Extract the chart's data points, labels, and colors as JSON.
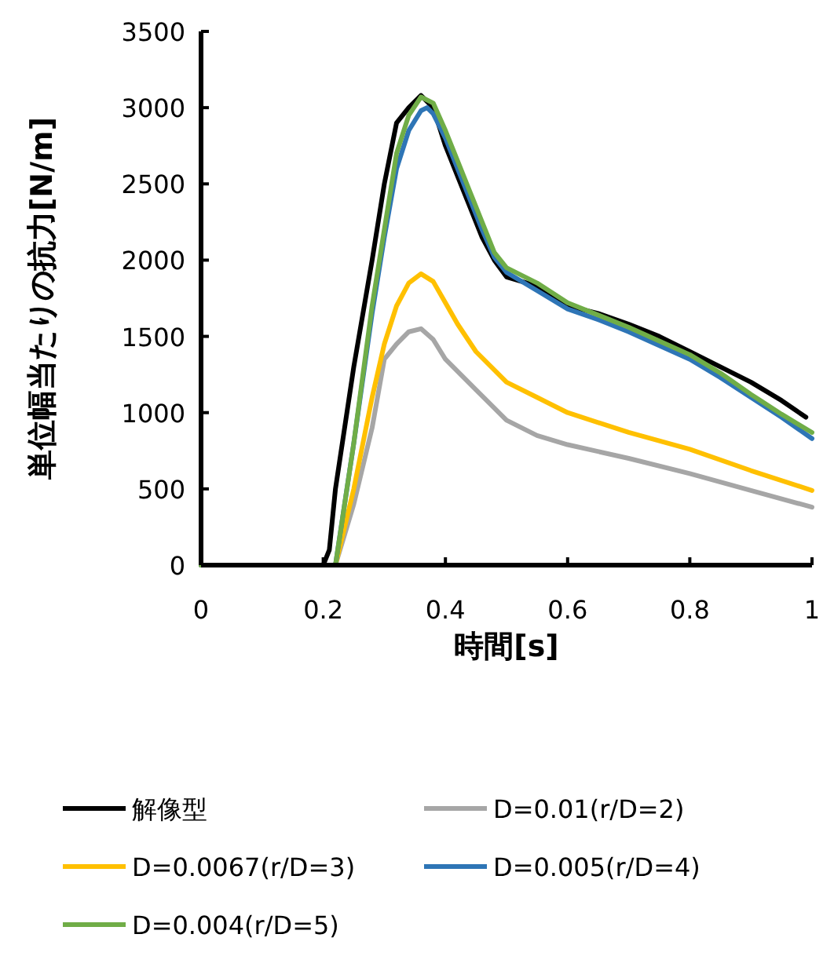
{
  "chart_data": {
    "type": "line",
    "xlabel": "時間[s]",
    "ylabel": "単位幅当たりの抗力[N/m]",
    "xlim": [
      0,
      1
    ],
    "ylim": [
      0,
      3500
    ],
    "xticks": [
      0,
      0.2,
      0.4,
      0.6,
      0.8,
      1
    ],
    "yticks": [
      0,
      500,
      1000,
      1500,
      2000,
      2500,
      3000,
      3500
    ],
    "grid": false,
    "legend": "bottom",
    "marker": "none",
    "line_style": "solid",
    "series": [
      {
        "name": "解像型",
        "color": "#000000",
        "x": [
          0,
          0.2,
          0.21,
          0.22,
          0.25,
          0.28,
          0.3,
          0.32,
          0.34,
          0.36,
          0.38,
          0.4,
          0.42,
          0.44,
          0.46,
          0.48,
          0.5,
          0.55,
          0.6,
          0.65,
          0.7,
          0.75,
          0.8,
          0.85,
          0.9,
          0.95,
          0.99
        ],
        "values": [
          0,
          0,
          100,
          500,
          1300,
          2000,
          2500,
          2900,
          3000,
          3080,
          3000,
          2750,
          2550,
          2350,
          2150,
          2000,
          1890,
          1830,
          1700,
          1650,
          1580,
          1500,
          1400,
          1300,
          1200,
          1080,
          970
        ]
      },
      {
        "name": "D=0.01(r/D=2)",
        "color": "#a6a6a6",
        "x": [
          0,
          0.22,
          0.25,
          0.28,
          0.3,
          0.32,
          0.34,
          0.36,
          0.38,
          0.4,
          0.45,
          0.5,
          0.55,
          0.6,
          0.7,
          0.8,
          0.9,
          1
        ],
        "values": [
          0,
          0,
          400,
          900,
          1350,
          1450,
          1530,
          1550,
          1480,
          1350,
          1150,
          950,
          850,
          790,
          700,
          600,
          490,
          380
        ]
      },
      {
        "name": "D=0.0067(r/D=3)",
        "color": "#ffc000",
        "x": [
          0,
          0.22,
          0.25,
          0.28,
          0.3,
          0.32,
          0.34,
          0.36,
          0.38,
          0.4,
          0.42,
          0.45,
          0.5,
          0.55,
          0.6,
          0.7,
          0.8,
          0.9,
          1
        ],
        "values": [
          0,
          0,
          500,
          1100,
          1450,
          1700,
          1850,
          1910,
          1860,
          1720,
          1580,
          1400,
          1200,
          1100,
          1000,
          870,
          760,
          620,
          490
        ]
      },
      {
        "name": "D=0.005(r/D=4)",
        "color": "#2e75b6",
        "x": [
          0,
          0.22,
          0.25,
          0.28,
          0.3,
          0.32,
          0.34,
          0.36,
          0.37,
          0.38,
          0.4,
          0.42,
          0.44,
          0.46,
          0.48,
          0.5,
          0.55,
          0.6,
          0.65,
          0.7,
          0.75,
          0.8,
          0.85,
          0.9,
          0.95,
          1
        ],
        "values": [
          0,
          0,
          800,
          1650,
          2150,
          2600,
          2850,
          2980,
          3000,
          2960,
          2800,
          2600,
          2400,
          2200,
          2020,
          1920,
          1800,
          1680,
          1610,
          1530,
          1440,
          1350,
          1230,
          1100,
          970,
          830
        ]
      },
      {
        "name": "D=0.004(r/D=5)",
        "color": "#70ad47",
        "x": [
          0,
          0.22,
          0.25,
          0.28,
          0.3,
          0.32,
          0.34,
          0.36,
          0.38,
          0.4,
          0.42,
          0.44,
          0.46,
          0.48,
          0.5,
          0.55,
          0.6,
          0.65,
          0.7,
          0.75,
          0.8,
          0.85,
          0.9,
          0.95,
          1
        ],
        "values": [
          0,
          0,
          800,
          1700,
          2200,
          2700,
          2950,
          3070,
          3030,
          2850,
          2650,
          2450,
          2250,
          2050,
          1950,
          1850,
          1720,
          1640,
          1560,
          1470,
          1380,
          1260,
          1120,
          990,
          870
        ]
      }
    ]
  }
}
